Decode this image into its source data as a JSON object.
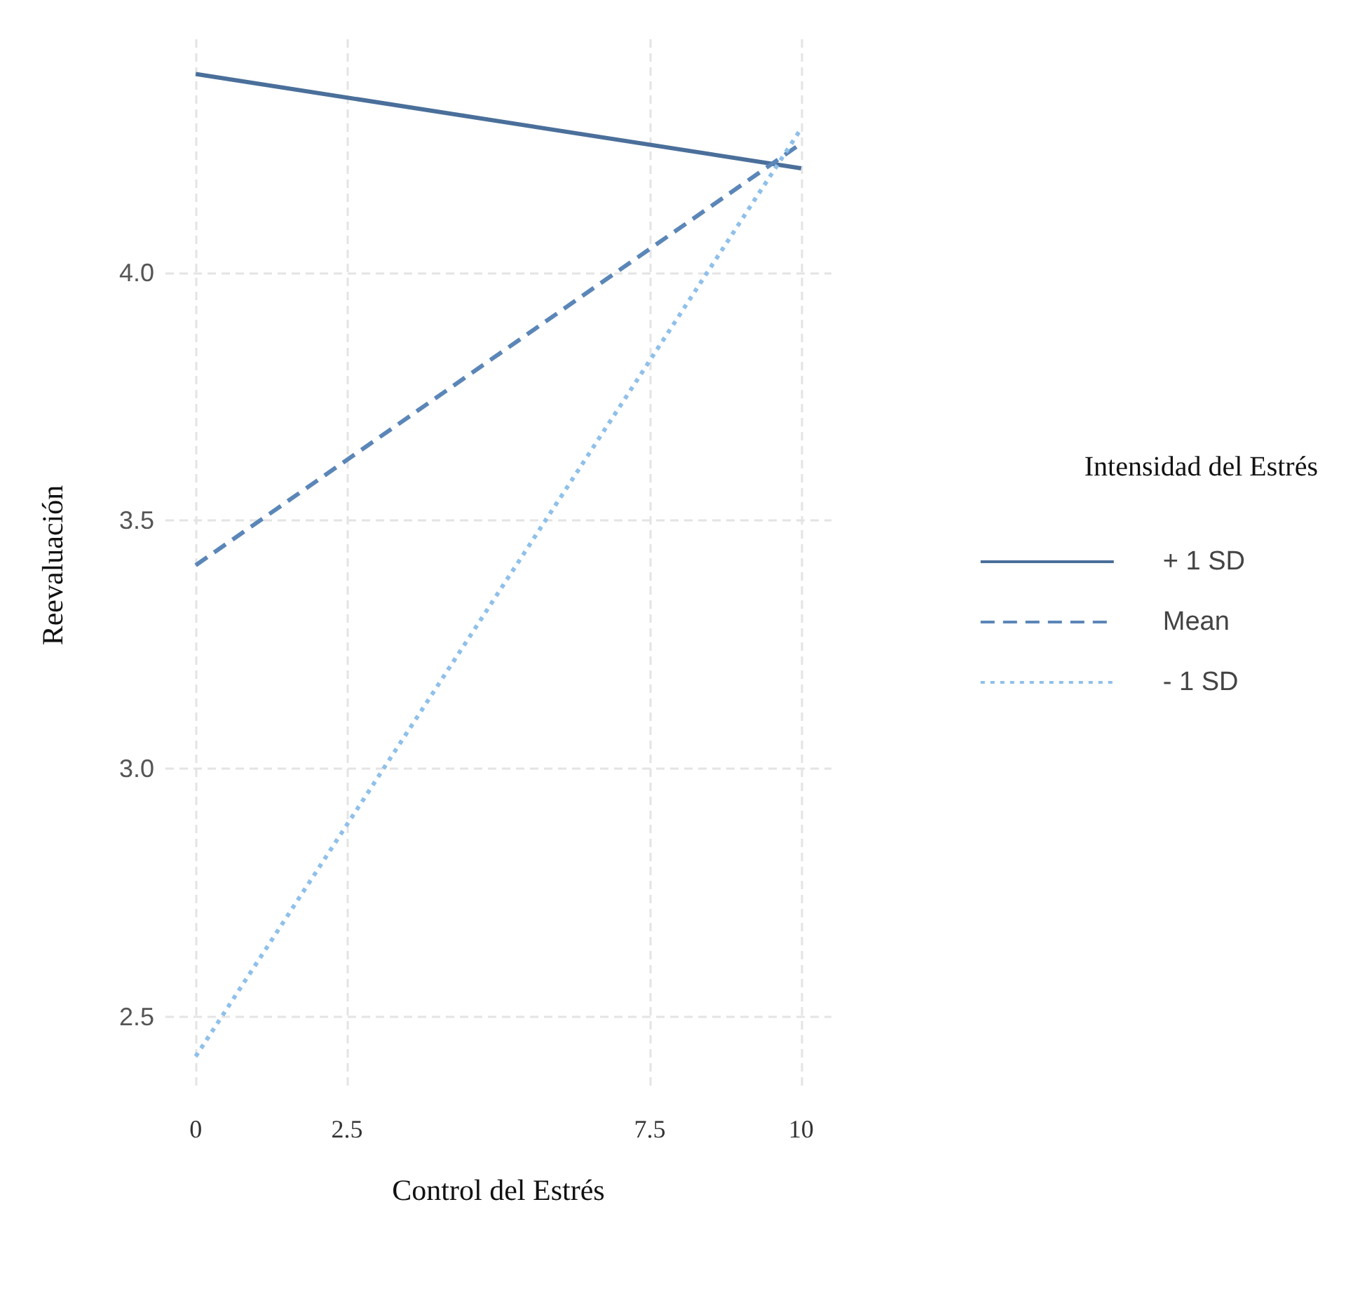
{
  "chart_data": {
    "type": "line",
    "xlabel": "Control del Estrés",
    "ylabel": "Reevaluación",
    "legend_title": "Intensidad del Estrés",
    "x": [
      0,
      10
    ],
    "series": [
      {
        "name": "+ 1 SD",
        "color": "#4a6f9a",
        "line_style": "solid",
        "values": [
          4.4,
          4.21
        ]
      },
      {
        "name": "Mean",
        "color": "#5b86b8",
        "line_style": "dashed",
        "values": [
          3.41,
          4.26
        ]
      },
      {
        "name": "- 1 SD",
        "color": "#8fc0ea",
        "line_style": "dotted",
        "values": [
          2.42,
          4.29
        ]
      }
    ],
    "xlim": [
      -0.5,
      10.5
    ],
    "xticks": [
      0,
      2.5,
      7.5,
      10
    ],
    "ylim": [
      2.35,
      4.47
    ],
    "yticks": [
      2.5,
      {
        "value": 3,
        "label": "3.0"
      },
      3.5,
      {
        "value": 4,
        "label": "4.0"
      }
    ],
    "grid": true,
    "legend": "right",
    "marker": "none"
  }
}
